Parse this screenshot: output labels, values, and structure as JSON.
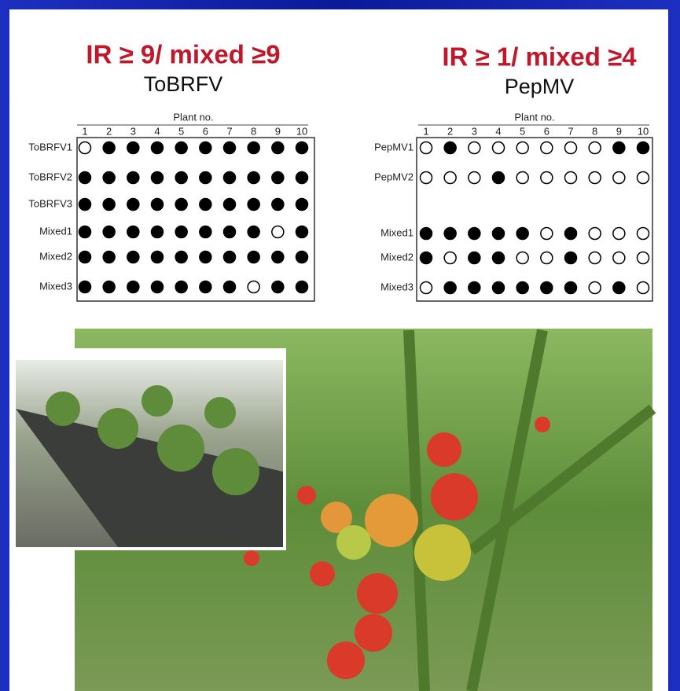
{
  "panels": [
    {
      "title": "IR ≥ 9/ mixed ≥9",
      "subtitle": "ToBRFV",
      "axis_label": "Plant no.",
      "columns": [
        "1",
        "2",
        "3",
        "4",
        "5",
        "6",
        "7",
        "8",
        "9",
        "10"
      ],
      "rows": [
        {
          "label": "ToBRFV1",
          "cells": [
            0,
            1,
            1,
            1,
            1,
            1,
            1,
            1,
            1,
            1
          ]
        },
        {
          "label": "ToBRFV2",
          "cells": [
            1,
            1,
            1,
            1,
            1,
            1,
            1,
            1,
            1,
            1
          ]
        },
        {
          "label": "ToBRFV3",
          "cells": [
            1,
            1,
            1,
            1,
            1,
            1,
            1,
            1,
            1,
            1
          ]
        },
        {
          "label": "Mixed1",
          "cells": [
            1,
            1,
            1,
            1,
            1,
            1,
            1,
            1,
            0,
            1
          ]
        },
        {
          "label": "Mixed2",
          "cells": [
            1,
            1,
            1,
            1,
            1,
            1,
            1,
            1,
            1,
            1
          ]
        },
        {
          "label": "Mixed3",
          "cells": [
            1,
            1,
            1,
            1,
            1,
            1,
            1,
            0,
            1,
            1
          ]
        }
      ]
    },
    {
      "title": "IR ≥ 1/ mixed ≥4",
      "subtitle": "PepMV",
      "axis_label": "Plant no.",
      "columns": [
        "1",
        "2",
        "3",
        "4",
        "5",
        "6",
        "7",
        "8",
        "9",
        "10"
      ],
      "rows": [
        {
          "label": "PepMV1",
          "cells": [
            0,
            1,
            0,
            0,
            0,
            0,
            0,
            0,
            1,
            1
          ]
        },
        {
          "label": "PepMV2",
          "cells": [
            0,
            0,
            0,
            1,
            0,
            0,
            0,
            0,
            0,
            0
          ]
        },
        {
          "label": "Mixed1",
          "cells": [
            1,
            1,
            1,
            1,
            1,
            0,
            1,
            0,
            0,
            0
          ]
        },
        {
          "label": "Mixed2",
          "cells": [
            1,
            0,
            1,
            1,
            0,
            0,
            1,
            0,
            0,
            0
          ]
        },
        {
          "label": "Mixed3",
          "cells": [
            0,
            1,
            1,
            1,
            1,
            1,
            1,
            0,
            1,
            0
          ]
        }
      ]
    }
  ]
}
